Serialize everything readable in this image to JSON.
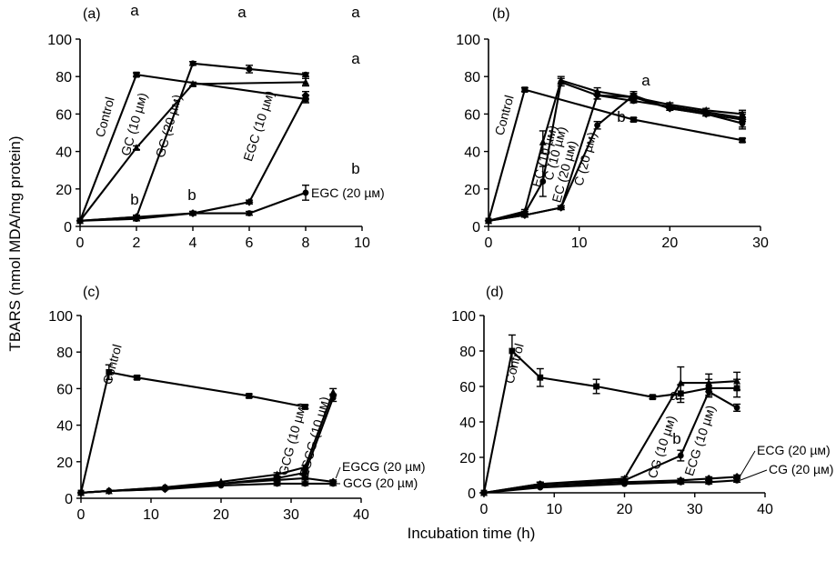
{
  "figure": {
    "ylabel": "TBARS (nmol MDA/mg protein)",
    "xlabel": "Incubation time (h)"
  },
  "chart_data": [
    {
      "type": "line",
      "panel_label": "(a)",
      "xlim": [
        0,
        10
      ],
      "ylim": [
        0,
        100
      ],
      "xticks": [
        0,
        2,
        4,
        6,
        8,
        10
      ],
      "yticks": [
        0,
        20,
        40,
        60,
        80,
        100
      ],
      "series": [
        {
          "name": "Control",
          "points": [
            [
              0,
              3
            ],
            [
              2,
              81
            ],
            [
              8,
              68
            ]
          ],
          "errors": [
            0,
            1,
            2
          ]
        },
        {
          "name": "GC (10 µм)",
          "points": [
            [
              0,
              3
            ],
            [
              2,
              42
            ],
            [
              4,
              76
            ],
            [
              8,
              77
            ]
          ],
          "errors": [
            0,
            1,
            1,
            2
          ]
        },
        {
          "name": "GC (20 µм)",
          "points": [
            [
              0,
              3
            ],
            [
              2,
              5
            ],
            [
              4,
              87
            ],
            [
              6,
              84
            ],
            [
              8,
              81
            ]
          ],
          "errors": [
            0,
            1,
            1,
            2,
            1
          ]
        },
        {
          "name": "EGC (10 µм)",
          "points": [
            [
              0,
              3
            ],
            [
              2,
              5
            ],
            [
              4,
              7
            ],
            [
              6,
              13
            ],
            [
              8,
              70
            ]
          ],
          "errors": [
            0,
            1,
            1,
            1,
            2
          ]
        },
        {
          "name": "EGC (20 µм)",
          "points": [
            [
              0,
              3
            ],
            [
              2,
              4
            ],
            [
              4,
              7
            ],
            [
              6,
              7
            ],
            [
              8,
              18
            ]
          ],
          "errors": [
            0,
            1,
            1,
            1,
            4
          ]
        }
      ],
      "annotations": [
        "a",
        "a",
        "a",
        "a",
        "b",
        "b",
        "b"
      ]
    },
    {
      "type": "line",
      "panel_label": "(b)",
      "xlim": [
        0,
        30
      ],
      "ylim": [
        0,
        100
      ],
      "xticks": [
        0,
        10,
        20,
        30
      ],
      "yticks": [
        0,
        20,
        40,
        60,
        80,
        100
      ],
      "series": [
        {
          "name": "Control",
          "points": [
            [
              0,
              3
            ],
            [
              4,
              73
            ],
            [
              16,
              57
            ],
            [
              28,
              46
            ]
          ],
          "errors": [
            0,
            1,
            1,
            1
          ]
        },
        {
          "name": "EC (10 µм)",
          "points": [
            [
              0,
              3
            ],
            [
              4,
              8
            ],
            [
              6,
              45
            ],
            [
              8,
              78
            ],
            [
              12,
              72
            ],
            [
              16,
              69
            ],
            [
              20,
              65
            ],
            [
              24,
              62
            ],
            [
              28,
              60
            ]
          ],
          "errors": [
            0,
            1,
            6,
            2,
            2,
            1,
            1,
            1,
            2
          ]
        },
        {
          "name": "C (10 µм)",
          "points": [
            [
              0,
              3
            ],
            [
              4,
              7
            ],
            [
              6,
              24
            ],
            [
              8,
              77
            ],
            [
              12,
              70
            ],
            [
              16,
              67
            ],
            [
              20,
              64
            ],
            [
              24,
              61
            ],
            [
              28,
              58
            ]
          ],
          "errors": [
            0,
            1,
            8,
            2,
            2,
            1,
            1,
            1,
            2
          ]
        },
        {
          "name": "EC (20 µм)",
          "points": [
            [
              0,
              3
            ],
            [
              4,
              6
            ],
            [
              8,
              10
            ],
            [
              12,
              70
            ],
            [
              16,
              69
            ],
            [
              20,
              63
            ],
            [
              24,
              60
            ],
            [
              28,
              57
            ]
          ],
          "errors": [
            0,
            1,
            1,
            2,
            2,
            1,
            1,
            4
          ]
        },
        {
          "name": "C (20 µм)",
          "points": [
            [
              0,
              3
            ],
            [
              4,
              6
            ],
            [
              8,
              10
            ],
            [
              12,
              54
            ],
            [
              16,
              70
            ],
            [
              20,
              63
            ],
            [
              24,
              60
            ],
            [
              28,
              55
            ]
          ],
          "errors": [
            0,
            1,
            1,
            2,
            2,
            1,
            1,
            3
          ]
        }
      ],
      "annotations": [
        "a",
        "b"
      ]
    },
    {
      "type": "line",
      "panel_label": "(c)",
      "xlim": [
        0,
        40
      ],
      "ylim": [
        0,
        100
      ],
      "xticks": [
        0,
        10,
        20,
        30,
        40
      ],
      "yticks": [
        0,
        20,
        40,
        60,
        80,
        100
      ],
      "series": [
        {
          "name": "Control",
          "points": [
            [
              0,
              3
            ],
            [
              4,
              69
            ],
            [
              8,
              66
            ],
            [
              24,
              56
            ],
            [
              32,
              50
            ]
          ],
          "errors": [
            0,
            4,
            1,
            1,
            1
          ]
        },
        {
          "name": "GCG (10 µм)",
          "points": [
            [
              0,
              3
            ],
            [
              4,
              4
            ],
            [
              12,
              6
            ],
            [
              20,
              9
            ],
            [
              28,
              13
            ],
            [
              32,
              17
            ],
            [
              36,
              58
            ]
          ],
          "errors": [
            0,
            0,
            0,
            0,
            1,
            1,
            2
          ]
        },
        {
          "name": "EGCG (10 µм)",
          "points": [
            [
              0,
              3
            ],
            [
              4,
              4
            ],
            [
              12,
              6
            ],
            [
              20,
              8
            ],
            [
              28,
              11
            ],
            [
              32,
              14
            ],
            [
              36,
              55
            ]
          ],
          "errors": [
            0,
            0,
            0,
            0,
            1,
            1,
            2
          ]
        },
        {
          "name": "EGCG (20 µм)",
          "points": [
            [
              0,
              3
            ],
            [
              4,
              4
            ],
            [
              12,
              5
            ],
            [
              20,
              8
            ],
            [
              28,
              10
            ],
            [
              32,
              11
            ],
            [
              36,
              9
            ]
          ],
          "errors": [
            0,
            0,
            0,
            0,
            1,
            1,
            1
          ]
        },
        {
          "name": "GCG (20 µм)",
          "points": [
            [
              0,
              3
            ],
            [
              4,
              4
            ],
            [
              12,
              5
            ],
            [
              20,
              7
            ],
            [
              28,
              8
            ],
            [
              32,
              8
            ],
            [
              36,
              8
            ]
          ],
          "errors": [
            0,
            0,
            0,
            0,
            1,
            1,
            1
          ]
        }
      ],
      "annotations": []
    },
    {
      "type": "line",
      "panel_label": "(d)",
      "xlim": [
        0,
        40
      ],
      "ylim": [
        0,
        100
      ],
      "xticks": [
        0,
        10,
        20,
        30,
        40
      ],
      "yticks": [
        0,
        20,
        40,
        60,
        80,
        100
      ],
      "series": [
        {
          "name": "Control",
          "points": [
            [
              0,
              0
            ],
            [
              4,
              80
            ],
            [
              8,
              65
            ],
            [
              16,
              60
            ],
            [
              24,
              54
            ],
            [
              28,
              56
            ],
            [
              32,
              59
            ],
            [
              36,
              59
            ]
          ],
          "errors": [
            0,
            9,
            5,
            4,
            1,
            5,
            5,
            5
          ]
        },
        {
          "name": "CG (10 µм)",
          "points": [
            [
              0,
              0
            ],
            [
              8,
              5
            ],
            [
              20,
              8
            ],
            [
              28,
              62
            ],
            [
              32,
              62
            ],
            [
              36,
              63
            ]
          ],
          "errors": [
            0,
            1,
            1,
            9,
            5,
            5
          ]
        },
        {
          "name": "ECG (10 µм)",
          "points": [
            [
              0,
              0
            ],
            [
              8,
              5
            ],
            [
              20,
              7
            ],
            [
              28,
              21
            ],
            [
              32,
              57
            ],
            [
              36,
              48
            ]
          ],
          "errors": [
            0,
            1,
            1,
            3,
            2,
            2
          ]
        },
        {
          "name": "ECG (20 µм)",
          "points": [
            [
              0,
              0
            ],
            [
              8,
              4
            ],
            [
              20,
              6
            ],
            [
              28,
              7
            ],
            [
              32,
              8
            ],
            [
              36,
              9
            ]
          ],
          "errors": [
            0,
            0,
            1,
            1,
            1,
            1
          ]
        },
        {
          "name": "CG (20 µм)",
          "points": [
            [
              0,
              0
            ],
            [
              8,
              3
            ],
            [
              20,
              5
            ],
            [
              28,
              6
            ],
            [
              32,
              6
            ],
            [
              36,
              7
            ]
          ],
          "errors": [
            0,
            0,
            0,
            1,
            1,
            1
          ]
        }
      ],
      "annotations": [
        "a",
        "b"
      ]
    }
  ]
}
